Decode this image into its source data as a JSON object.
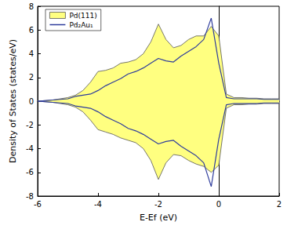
{
  "chart_data": {
    "type": "line",
    "x_label": "E-Ef (eV)",
    "y_label": "Density of States (states/eV)",
    "x": [
      -6,
      -5.75,
      -5.5,
      -5.25,
      -5,
      -4.75,
      -4.5,
      -4.25,
      -4,
      -3.75,
      -3.5,
      -3.25,
      -3,
      -2.75,
      -2.5,
      -2.25,
      -2,
      -1.75,
      -1.5,
      -1.25,
      -1,
      -0.75,
      -0.5,
      -0.25,
      0,
      0.25,
      0.5,
      0.75,
      1,
      1.25,
      1.5,
      1.75,
      2
    ],
    "series": [
      {
        "name": "Pd(111)",
        "type": "area",
        "color": "#ffff80",
        "values": [
          0,
          0.05,
          0.1,
          0.2,
          0.3,
          0.5,
          0.9,
          1.6,
          2.5,
          2.6,
          2.8,
          3.2,
          3.3,
          3.5,
          4.0,
          5.0,
          6.5,
          5.2,
          4.5,
          4.7,
          5.2,
          5.5,
          5.5,
          6.3,
          5.5,
          0.6,
          0.3,
          0.3,
          0.25,
          0.25,
          0.2,
          0.2,
          0.2
        ]
      },
      {
        "name": "Pd(111)",
        "type": "area",
        "color": "#ffff80",
        "values": [
          0,
          -0.05,
          -0.1,
          -0.2,
          -0.3,
          -0.5,
          -0.9,
          -1.6,
          -2.4,
          -2.6,
          -2.8,
          -3.1,
          -3.3,
          -3.5,
          -4.0,
          -5.0,
          -6.6,
          -5.2,
          -4.5,
          -4.6,
          -5.0,
          -5.3,
          -5.5,
          -6.0,
          -5.4,
          -0.6,
          -0.3,
          -0.3,
          -0.25,
          -0.25,
          -0.2,
          -0.2,
          -0.2
        ]
      },
      {
        "name": "Pd₂Au₁",
        "type": "line",
        "color": "#2f3d9c",
        "values": [
          0,
          0.05,
          0.1,
          0.15,
          0.2,
          0.4,
          0.5,
          0.6,
          0.9,
          1.3,
          1.6,
          1.9,
          2.3,
          2.5,
          2.8,
          3.2,
          3.6,
          3.4,
          3.3,
          3.8,
          4.2,
          4.6,
          5.2,
          7.0,
          3.2,
          0.3,
          0.2,
          0.2,
          0.2,
          0.2,
          0.15,
          0.15,
          0.15
        ]
      },
      {
        "name": "Pd₂Au₁",
        "type": "line",
        "color": "#2f3d9c",
        "values": [
          0,
          -0.05,
          -0.1,
          -0.15,
          -0.2,
          -0.4,
          -0.5,
          -0.6,
          -0.9,
          -1.3,
          -1.6,
          -1.9,
          -2.3,
          -2.5,
          -2.8,
          -3.2,
          -3.6,
          -3.4,
          -3.3,
          -3.8,
          -4.2,
          -4.6,
          -5.2,
          -7.2,
          -3.2,
          -0.3,
          -0.2,
          -0.2,
          -0.2,
          -0.2,
          -0.15,
          -0.15,
          -0.15
        ]
      }
    ],
    "xlim": [
      -6,
      2
    ],
    "xticks": [
      -6,
      -4,
      -2,
      0,
      2
    ],
    "ylim": [
      -8,
      8
    ],
    "yticks": [
      -8,
      -6,
      -4,
      -2,
      0,
      2,
      4,
      6,
      8
    ],
    "legend": "upper left",
    "grid": false
  }
}
